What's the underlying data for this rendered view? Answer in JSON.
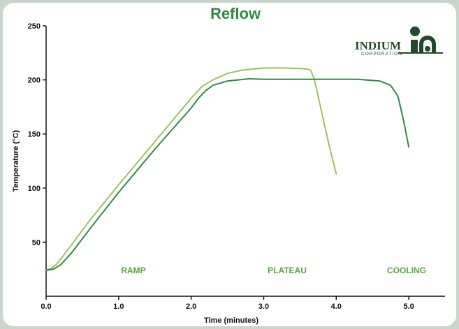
{
  "chart_data": {
    "type": "line",
    "title": "Reflow",
    "xlabel": "Time (minutes)",
    "ylabel": "Temperature (°C)",
    "xlim": [
      0,
      5.5
    ],
    "ylim": [
      0,
      250
    ],
    "x_ticks": [
      "0.0",
      "1.0",
      "2.0",
      "3.0",
      "4.0",
      "5.0"
    ],
    "y_ticks": [
      "50",
      "100",
      "150",
      "200",
      "250"
    ],
    "grid": false,
    "legend": "none",
    "series": [
      {
        "color": "#9cc45a",
        "x": [
          0,
          0.08,
          0.15,
          0.3,
          0.6,
          1.0,
          1.5,
          2.0,
          2.15,
          2.3,
          2.5,
          2.7,
          3.0,
          3.3,
          3.5,
          3.6,
          3.65,
          3.7,
          3.8,
          3.9,
          4.0
        ],
        "y": [
          24,
          26,
          30,
          43,
          70,
          103,
          143,
          183,
          194,
          200,
          206,
          209,
          211,
          211,
          210.5,
          210,
          209,
          200,
          170,
          140,
          113
        ]
      },
      {
        "color": "#2e8b45",
        "x": [
          0,
          0.1,
          0.2,
          0.35,
          0.6,
          1.0,
          1.5,
          2.0,
          2.1,
          2.2,
          2.3,
          2.5,
          2.8,
          3.0,
          3.5,
          4.0,
          4.3,
          4.6,
          4.75,
          4.85,
          4.92,
          5.0
        ],
        "y": [
          24,
          25,
          29,
          40,
          62,
          96,
          136,
          174,
          183,
          190,
          195,
          199,
          201,
          200.5,
          200.5,
          200.5,
          200.5,
          199,
          195,
          185,
          165,
          138
        ]
      }
    ],
    "annotations": [
      "RAMP",
      "PLATEAU",
      "COOLING"
    ]
  },
  "logo": {
    "name": "INDIUM",
    "subtitle": "CORPORATION"
  }
}
